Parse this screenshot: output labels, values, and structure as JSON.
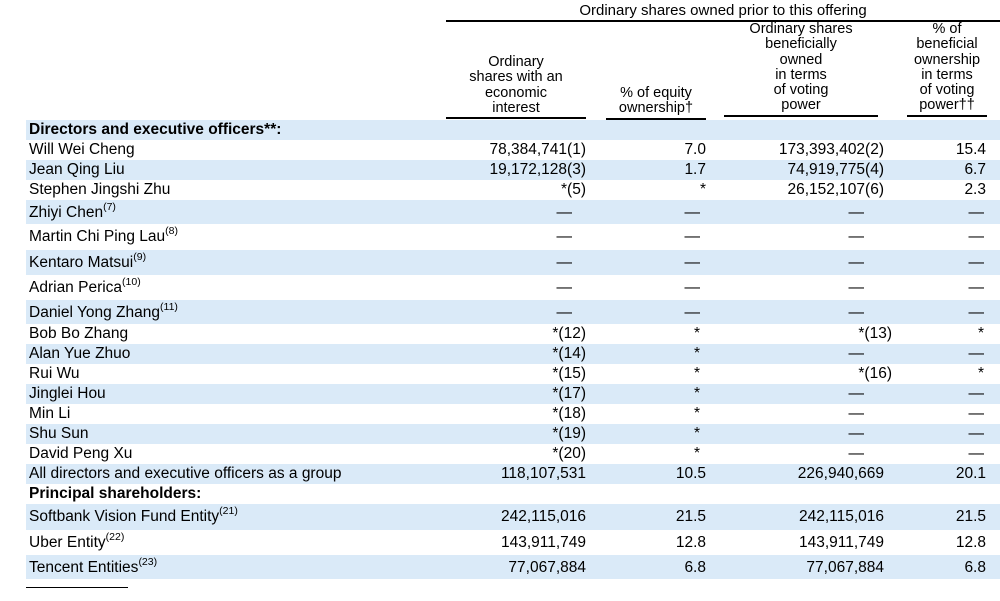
{
  "header": {
    "super": "Ordinary shares owned prior to this offering",
    "col1": [
      "Ordinary",
      "shares with an",
      "economic",
      "interest"
    ],
    "col2": [
      "% of equity",
      "ownership†"
    ],
    "col3": [
      "Ordinary shares",
      "beneficially",
      "owned",
      "in terms",
      "of voting",
      "power"
    ],
    "col4": [
      "% of",
      "beneficial",
      "ownership",
      "in terms",
      "of voting",
      "power††"
    ]
  },
  "sections": {
    "directors": "Directors and executive officers**:",
    "principal": "Principal shareholders:"
  },
  "rows": [
    {
      "name": "Will Wei Cheng",
      "sup": "",
      "c1": "78,384,741(1)",
      "c2": "7.0",
      "c3": "173,393,402(2)",
      "c4": "15.4"
    },
    {
      "name": "Jean Qing Liu",
      "sup": "",
      "c1": "19,172,128(3)",
      "c2": "1.7",
      "c3": "74,919,775(4)",
      "c4": "6.7"
    },
    {
      "name": "Stephen Jingshi Zhu",
      "sup": "",
      "c1": "*(5)",
      "c2": "*",
      "c3": "26,152,107(6)",
      "c4": "2.3"
    },
    {
      "name": "Zhiyi Chen",
      "sup": "(7)",
      "c1": "—",
      "c2": "—",
      "c3": "—",
      "c4": "—"
    },
    {
      "name": "Martin Chi Ping Lau",
      "sup": "(8)",
      "c1": "—",
      "c2": "—",
      "c3": "—",
      "c4": "—"
    },
    {
      "name": "Kentaro Matsui",
      "sup": "(9)",
      "c1": "—",
      "c2": "—",
      "c3": "—",
      "c4": "—"
    },
    {
      "name": "Adrian Perica",
      "sup": "(10)",
      "c1": "—",
      "c2": "—",
      "c3": "—",
      "c4": "—"
    },
    {
      "name": "Daniel Yong Zhang",
      "sup": "(11)",
      "c1": "—",
      "c2": "—",
      "c3": "—",
      "c4": "—"
    },
    {
      "name": "Bob Bo Zhang",
      "sup": "",
      "c1": "*(12)",
      "c2": "*",
      "c3": "*(13)",
      "c4": "*"
    },
    {
      "name": "Alan Yue Zhuo",
      "sup": "",
      "c1": "*(14)",
      "c2": "*",
      "c3": "—",
      "c4": "—"
    },
    {
      "name": "Rui Wu",
      "sup": "",
      "c1": "*(15)",
      "c2": "*",
      "c3": "*(16)",
      "c4": "*"
    },
    {
      "name": "Jinglei Hou",
      "sup": "",
      "c1": "*(17)",
      "c2": "*",
      "c3": "—",
      "c4": "—"
    },
    {
      "name": "Min Li",
      "sup": "",
      "c1": "*(18)",
      "c2": "*",
      "c3": "—",
      "c4": "—"
    },
    {
      "name": "Shu Sun",
      "sup": "",
      "c1": "*(19)",
      "c2": "*",
      "c3": "—",
      "c4": "—"
    },
    {
      "name": "David Peng Xu",
      "sup": "",
      "c1": "*(20)",
      "c2": "*",
      "c3": "—",
      "c4": "—"
    },
    {
      "name": "All directors and executive officers as a group",
      "sup": "",
      "c1": "118,107,531",
      "c2": "10.5",
      "c3": "226,940,669",
      "c4": "20.1"
    },
    {
      "name": "Softbank Vision Fund Entity",
      "sup": "(21)",
      "c1": "242,115,016",
      "c2": "21.5",
      "c3": "242,115,016",
      "c4": "21.5"
    },
    {
      "name": "Uber Entity",
      "sup": "(22)",
      "c1": "143,911,749",
      "c2": "12.8",
      "c3": "143,911,749",
      "c4": "12.8"
    },
    {
      "name": "Tencent Entities",
      "sup": "(23)",
      "c1": "77,067,884",
      "c2": "6.8",
      "c3": "77,067,884",
      "c4": "6.8"
    }
  ]
}
